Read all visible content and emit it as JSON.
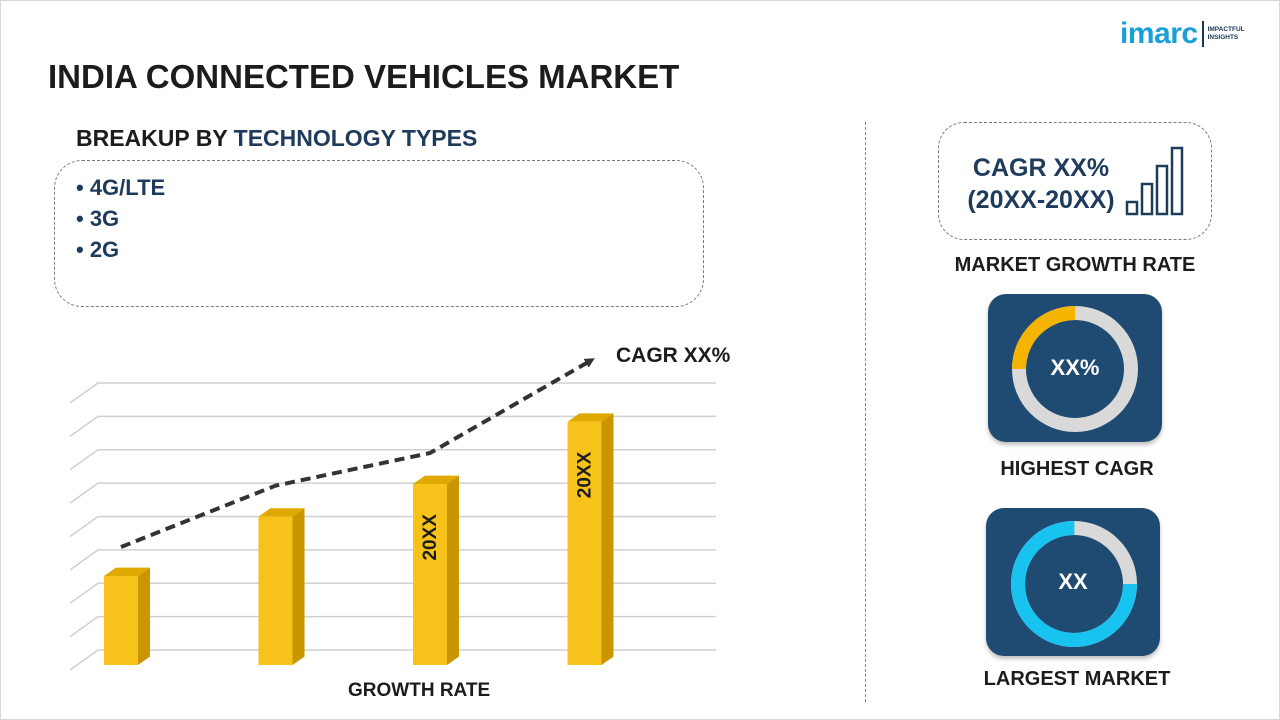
{
  "header": {
    "title": "INDIA CONNECTED VEHICLES MARKET",
    "logo_word": "imarc",
    "logo_tag_line1": "IMPACTFUL",
    "logo_tag_line2": "INSIGHTS"
  },
  "segment": {
    "title_prefix": "BREAKUP BY ",
    "title_accent": "TECHNOLOGY TYPES",
    "items": [
      "• 4G/LTE",
      "• 3G",
      "• 2G"
    ]
  },
  "kpi": {
    "cagr_line1": "CAGR XX%",
    "cagr_line2": "(20XX-20XX)",
    "growth_caption": "MARKET GROWTH RATE",
    "highest_value": "XX%",
    "highest_caption": "HIGHEST CAGR",
    "largest_value": "XX",
    "largest_caption": "LARGEST MARKET"
  },
  "colors": {
    "bar_front": "#f7c21a",
    "bar_side": "#c99600",
    "bar_top": "#e0a900",
    "navy": "#1f3b5c",
    "tile_bg": "#1f4b72",
    "ring_track": "#d9d9d9",
    "ring_accent_yellow": "#f4b400",
    "ring_accent_cyan": "#19c3f0"
  },
  "chart_data": {
    "type": "bar",
    "categories": [
      "",
      "",
      "",
      ""
    ],
    "values": [
      30,
      50,
      61,
      82
    ],
    "bar_labels": [
      "",
      "",
      "20XX",
      "20XX"
    ],
    "trend_annotation": "CAGR XX%",
    "xlabel": "GROWTH RATE",
    "ylabel": "",
    "ylim": [
      0,
      90
    ],
    "grid": true
  }
}
